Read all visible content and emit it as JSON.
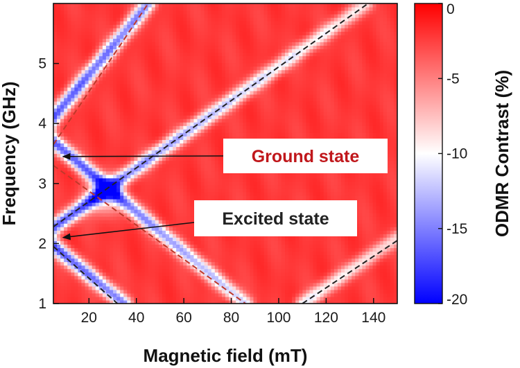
{
  "chart_data": {
    "type": "heatmap",
    "title": "",
    "xlabel": "Magnetic field (mT)",
    "ylabel": "Frequency (GHz)",
    "xlim": [
      5,
      150
    ],
    "ylim": [
      1,
      6
    ],
    "xticks": [
      20,
      40,
      60,
      80,
      100,
      120,
      140
    ],
    "yticks": [
      1,
      2,
      3,
      4,
      5
    ],
    "colorbar": {
      "label": "ODMR Contrast (%)",
      "range": [
        -20,
        0
      ],
      "ticks": [
        0,
        -5,
        -10,
        -15,
        -20
      ],
      "colors": {
        "low": "#0000ff",
        "mid": "#ffffff",
        "high": "#ff0000"
      }
    },
    "resonance_lines": [
      {
        "label": "ground-upper",
        "points": [
          [
            0,
            3.87
          ],
          [
            45,
            6.0
          ]
        ]
      },
      {
        "label": "ground-lower",
        "points": [
          [
            0,
            3.87
          ],
          [
            86,
            1.0
          ]
        ]
      },
      {
        "label": "excited-upper",
        "points": [
          [
            0,
            2.13
          ],
          [
            137,
            6.0
          ]
        ]
      },
      {
        "label": "excited-lower",
        "points": [
          [
            0,
            2.13
          ],
          [
            35,
            1.0
          ]
        ]
      },
      {
        "label": "excited-lower-rising",
        "points": [
          [
            110,
            1.0
          ],
          [
            150,
            2.1
          ]
        ]
      }
    ],
    "guide_lines": [
      {
        "color": "#c0392b",
        "points": [
          [
            5,
            3.65
          ],
          [
            45,
            6.0
          ]
        ]
      },
      {
        "color": "#c0392b",
        "points": [
          [
            5,
            3.3
          ],
          [
            86,
            1.0
          ]
        ]
      },
      {
        "color": "#222222",
        "points": [
          [
            5,
            2.28
          ],
          [
            137,
            5.98
          ]
        ]
      },
      {
        "color": "#222222",
        "points": [
          [
            5,
            1.95
          ],
          [
            32,
            1.0
          ]
        ]
      },
      {
        "color": "#222222",
        "points": [
          [
            110,
            1.0
          ],
          [
            150,
            2.05
          ]
        ]
      }
    ],
    "annotations": [
      {
        "text": "Ground state",
        "color": "#c0171b",
        "arrow_to": [
          9,
          3.45
        ]
      },
      {
        "text": "Excited state",
        "color": "#222222",
        "arrow_to": [
          9,
          2.1
        ]
      }
    ]
  }
}
